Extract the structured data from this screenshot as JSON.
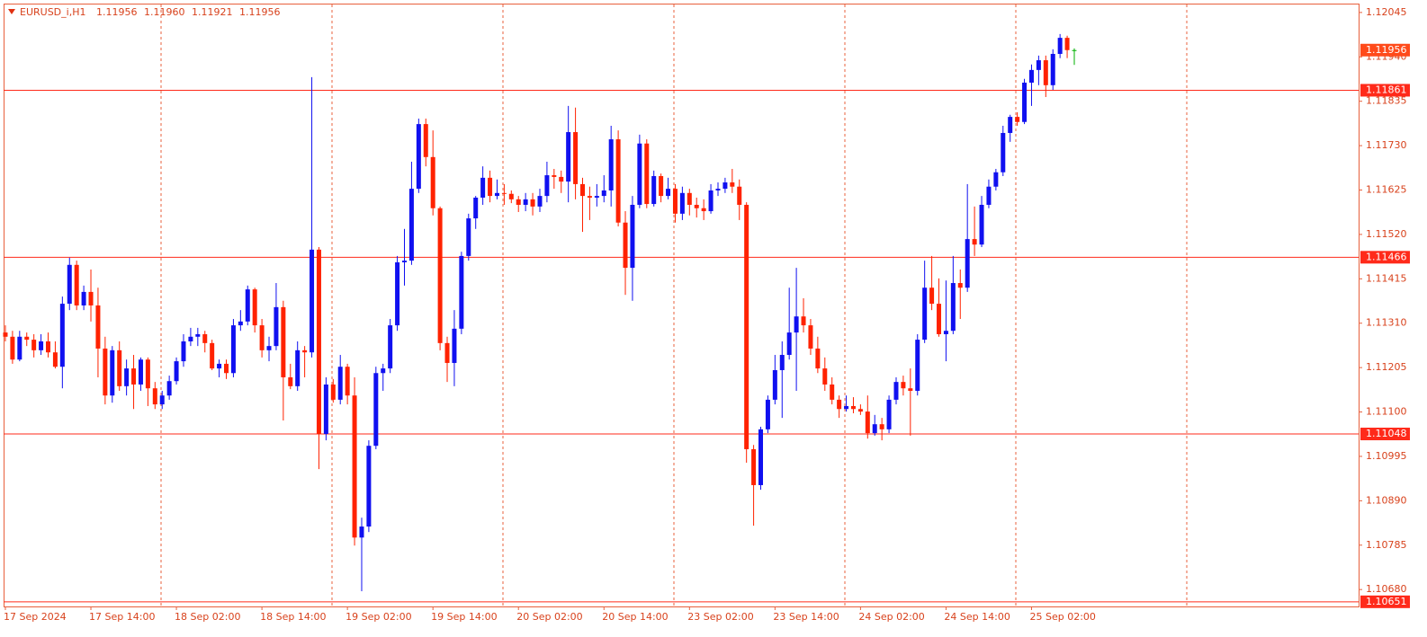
{
  "chart_data": {
    "type": "candlestick",
    "title": "EURUSD_i,H1",
    "header_labels": [
      "1.11956",
      "1.11960",
      "1.11921",
      "1.11956"
    ],
    "up_color": "#1010f0",
    "down_color": "#ff2200",
    "doji_color": "#00b000",
    "level_color": "#ff2a1a",
    "price_color": "#ff4a1a",
    "xlim": [
      -0.25,
      189.9
    ],
    "xticks": [
      {
        "value": 0,
        "label": "17 Sep 2024"
      },
      {
        "value": 12,
        "label": "17 Sep 14:00"
      },
      {
        "value": 24,
        "label": "18 Sep 02:00"
      },
      {
        "value": 36,
        "label": "18 Sep 14:00"
      },
      {
        "value": 48,
        "label": "19 Sep 02:00"
      },
      {
        "value": 60,
        "label": "19 Sep 14:00"
      },
      {
        "value": 72,
        "label": "20 Sep 02:00"
      },
      {
        "value": 84,
        "label": "20 Sep 14:00"
      },
      {
        "value": 96,
        "label": "23 Sep 02:00"
      },
      {
        "value": 108,
        "label": "23 Sep 14:00"
      },
      {
        "value": 120,
        "label": "24 Sep 02:00"
      },
      {
        "value": 132,
        "label": "24 Sep 14:00"
      },
      {
        "value": 144,
        "label": "25 Sep 02:00"
      }
    ],
    "ylim": [
      1.1064,
      1.12066
    ],
    "yticks": [
      1.12045,
      {
        "value": 1.1194,
        "label": "1.11940"
      },
      1.11835,
      {
        "value": 1.1173,
        "label": "1.11730"
      },
      1.11625,
      {
        "value": 1.1152,
        "label": "1.11520"
      },
      1.11415,
      {
        "value": 1.1131,
        "label": "1.11310"
      },
      1.11205,
      {
        "value": 1.111,
        "label": "1.11100"
      },
      1.10995,
      {
        "value": 1.1089,
        "label": "1.10890"
      },
      1.10785,
      {
        "value": 1.1068,
        "label": "1.10680"
      }
    ],
    "levels": [
      1.11861,
      1.11466,
      1.11048,
      1.10651
    ],
    "ohlc": [
      [
        1.11288,
        1.11305,
        1.11267,
        1.11278
      ],
      [
        1.11278,
        1.11292,
        1.11214,
        1.11224
      ],
      [
        1.11224,
        1.11292,
        1.1122,
        1.11278
      ],
      [
        1.11278,
        1.11288,
        1.11256,
        1.11271
      ],
      [
        1.11271,
        1.11284,
        1.11229,
        1.11246
      ],
      [
        1.11246,
        1.11284,
        1.11235,
        1.11267
      ],
      [
        1.11267,
        1.11288,
        1.11229,
        1.11241
      ],
      [
        1.11241,
        1.11267,
        1.11203,
        1.11207
      ],
      [
        1.11207,
        1.11373,
        1.11156,
        1.11356
      ],
      [
        1.11356,
        1.11465,
        1.11341,
        1.11448
      ],
      [
        1.11448,
        1.11458,
        1.11341,
        1.11352
      ],
      [
        1.11352,
        1.11399,
        1.11341,
        1.11384
      ],
      [
        1.11384,
        1.11437,
        1.11314,
        1.11352
      ],
      [
        1.11352,
        1.11394,
        1.11182,
        1.1125
      ],
      [
        1.1125,
        1.11278,
        1.11118,
        1.11139
      ],
      [
        1.11139,
        1.11256,
        1.11122,
        1.11246
      ],
      [
        1.11246,
        1.11267,
        1.1115,
        1.11161
      ],
      [
        1.11161,
        1.11224,
        1.11139,
        1.11203
      ],
      [
        1.11203,
        1.11235,
        1.11107,
        1.11165
      ],
      [
        1.11165,
        1.11229,
        1.1115,
        1.11224
      ],
      [
        1.11224,
        1.11229,
        1.11114,
        1.11156
      ],
      [
        1.11156,
        1.11171,
        1.11107,
        1.11118
      ],
      [
        1.11118,
        1.1115,
        1.11107,
        1.11139
      ],
      [
        1.11139,
        1.11186,
        1.11129,
        1.11173
      ],
      [
        1.11173,
        1.11229,
        1.11165,
        1.1122
      ],
      [
        1.1122,
        1.11284,
        1.11207,
        1.11267
      ],
      [
        1.11267,
        1.11299,
        1.11256,
        1.11278
      ],
      [
        1.11278,
        1.11299,
        1.11256,
        1.11284
      ],
      [
        1.11284,
        1.11292,
        1.11241,
        1.11263
      ],
      [
        1.11263,
        1.11271,
        1.11199,
        1.11203
      ],
      [
        1.11203,
        1.11224,
        1.11182,
        1.11214
      ],
      [
        1.11214,
        1.11224,
        1.11178,
        1.11192
      ],
      [
        1.11192,
        1.1132,
        1.11182,
        1.11305
      ],
      [
        1.11305,
        1.11341,
        1.11292,
        1.11314
      ],
      [
        1.11314,
        1.11399,
        1.11305,
        1.1139
      ],
      [
        1.1139,
        1.11394,
        1.11288,
        1.11305
      ],
      [
        1.11305,
        1.1132,
        1.11229,
        1.11246
      ],
      [
        1.11246,
        1.11278,
        1.1122,
        1.11256
      ],
      [
        1.11256,
        1.11405,
        1.11246,
        1.11348
      ],
      [
        1.11348,
        1.11363,
        1.1108,
        1.11182
      ],
      [
        1.11182,
        1.11214,
        1.11154,
        1.11161
      ],
      [
        1.11161,
        1.11267,
        1.1115,
        1.11246
      ],
      [
        1.11246,
        1.11256,
        1.11182,
        1.11241
      ],
      [
        1.11241,
        1.11892,
        1.11229,
        1.11484
      ],
      [
        1.11484,
        1.1149,
        1.10965,
        1.11048
      ],
      [
        1.11048,
        1.11182,
        1.11033,
        1.11165
      ],
      [
        1.11165,
        1.11178,
        1.11122,
        1.11129
      ],
      [
        1.11129,
        1.11235,
        1.11118,
        1.11207
      ],
      [
        1.11207,
        1.11214,
        1.11118,
        1.11139
      ],
      [
        1.11139,
        1.11182,
        1.10784,
        1.10803
      ],
      [
        1.10803,
        1.1085,
        1.10676,
        1.10829
      ],
      [
        1.10829,
        1.11033,
        1.10816,
        1.1102
      ],
      [
        1.1102,
        1.11207,
        1.11012,
        1.11192
      ],
      [
        1.11192,
        1.11214,
        1.1115,
        1.11203
      ],
      [
        1.11203,
        1.1132,
        1.11192,
        1.11305
      ],
      [
        1.11305,
        1.11469,
        1.11292,
        1.11454
      ],
      [
        1.11454,
        1.11533,
        1.11399,
        1.11458
      ],
      [
        1.11458,
        1.11692,
        1.11448,
        1.11628
      ],
      [
        1.11628,
        1.11794,
        1.11618,
        1.11781
      ],
      [
        1.11781,
        1.11794,
        1.11681,
        1.11703
      ],
      [
        1.11703,
        1.11766,
        1.11565,
        1.11582
      ],
      [
        1.11582,
        1.11586,
        1.11246,
        1.11263
      ],
      [
        1.11263,
        1.11278,
        1.11171,
        1.11216
      ],
      [
        1.11216,
        1.11341,
        1.11161,
        1.11297
      ],
      [
        1.11297,
        1.11479,
        1.11284,
        1.11469
      ],
      [
        1.11469,
        1.11569,
        1.11458,
        1.11558
      ],
      [
        1.11558,
        1.11611,
        1.11533,
        1.11607
      ],
      [
        1.11607,
        1.11681,
        1.1159,
        1.11654
      ],
      [
        1.11654,
        1.11671,
        1.11596,
        1.11611
      ],
      [
        1.11611,
        1.1165,
        1.11603,
        1.11618
      ],
      [
        1.11618,
        1.11639,
        1.1159,
        1.11616
      ],
      [
        1.11616,
        1.11624,
        1.11594,
        1.11603
      ],
      [
        1.11603,
        1.11611,
        1.11573,
        1.1159
      ],
      [
        1.1159,
        1.11618,
        1.11575,
        1.11603
      ],
      [
        1.11603,
        1.11618,
        1.11565,
        1.11586
      ],
      [
        1.11586,
        1.11628,
        1.11573,
        1.11611
      ],
      [
        1.11611,
        1.11692,
        1.11596,
        1.1166
      ],
      [
        1.1166,
        1.11675,
        1.11628,
        1.11656
      ],
      [
        1.11656,
        1.11671,
        1.11618,
        1.11645
      ],
      [
        1.11645,
        1.11824,
        1.11596,
        1.11762
      ],
      [
        1.11762,
        1.1182,
        1.11603,
        1.11639
      ],
      [
        1.11639,
        1.11654,
        1.11526,
        1.11611
      ],
      [
        1.11611,
        1.11633,
        1.11554,
        1.11607
      ],
      [
        1.11607,
        1.11639,
        1.11586,
        1.11611
      ],
      [
        1.11611,
        1.1166,
        1.11596,
        1.11624
      ],
      [
        1.11624,
        1.11777,
        1.11586,
        1.11745
      ],
      [
        1.11745,
        1.11766,
        1.11539,
        1.11548
      ],
      [
        1.11548,
        1.11575,
        1.11377,
        1.11441
      ],
      [
        1.11441,
        1.11611,
        1.11363,
        1.1159
      ],
      [
        1.1159,
        1.11756,
        1.11582,
        1.11735
      ],
      [
        1.11735,
        1.11745,
        1.11582,
        1.11592
      ],
      [
        1.11592,
        1.11671,
        1.11586,
        1.11658
      ],
      [
        1.11658,
        1.11664,
        1.11596,
        1.11611
      ],
      [
        1.11611,
        1.11654,
        1.11603,
        1.11628
      ],
      [
        1.11628,
        1.11639,
        1.11548,
        1.11569
      ],
      [
        1.11569,
        1.11633,
        1.11554,
        1.11618
      ],
      [
        1.11618,
        1.11628,
        1.11565,
        1.1159
      ],
      [
        1.1159,
        1.11607,
        1.1156,
        1.11582
      ],
      [
        1.11582,
        1.11603,
        1.11554,
        1.11575
      ],
      [
        1.11575,
        1.11639,
        1.11569,
        1.11624
      ],
      [
        1.11624,
        1.11643,
        1.11611,
        1.11628
      ],
      [
        1.11628,
        1.11654,
        1.11618,
        1.11643
      ],
      [
        1.11643,
        1.11675,
        1.11618,
        1.11633
      ],
      [
        1.11633,
        1.1165,
        1.11554,
        1.1159
      ],
      [
        1.1159,
        1.11596,
        1.1098,
        1.11012
      ],
      [
        1.11012,
        1.11022,
        1.10831,
        1.10927
      ],
      [
        1.10927,
        1.11065,
        1.10916,
        1.11059
      ],
      [
        1.11059,
        1.11139,
        1.1105,
        1.11129
      ],
      [
        1.11129,
        1.11235,
        1.11118,
        1.11199
      ],
      [
        1.11199,
        1.11267,
        1.11086,
        1.11235
      ],
      [
        1.11235,
        1.11394,
        1.11224,
        1.11288
      ],
      [
        1.11288,
        1.11441,
        1.1115,
        1.11326
      ],
      [
        1.11326,
        1.11369,
        1.11288,
        1.11305
      ],
      [
        1.11305,
        1.1132,
        1.11235,
        1.1125
      ],
      [
        1.1125,
        1.11278,
        1.11192,
        1.11203
      ],
      [
        1.11203,
        1.11229,
        1.1115,
        1.11165
      ],
      [
        1.11165,
        1.11182,
        1.11118,
        1.11129
      ],
      [
        1.11129,
        1.11139,
        1.11086,
        1.11107
      ],
      [
        1.11107,
        1.11139,
        1.11101,
        1.11114
      ],
      [
        1.11114,
        1.11135,
        1.11097,
        1.11107
      ],
      [
        1.11107,
        1.11118,
        1.11093,
        1.11101
      ],
      [
        1.11101,
        1.11139,
        1.11037,
        1.1105
      ],
      [
        1.1105,
        1.11093,
        1.11044,
        1.11071
      ],
      [
        1.11071,
        1.11086,
        1.11033,
        1.11059
      ],
      [
        1.11059,
        1.11139,
        1.1105,
        1.11129
      ],
      [
        1.11129,
        1.11182,
        1.11118,
        1.11171
      ],
      [
        1.11171,
        1.11186,
        1.11139,
        1.11156
      ],
      [
        1.11156,
        1.11203,
        1.11044,
        1.1115
      ],
      [
        1.1115,
        1.11284,
        1.11139,
        1.11271
      ],
      [
        1.11271,
        1.11458,
        1.11263,
        1.11394
      ],
      [
        1.11394,
        1.11469,
        1.11341,
        1.11356
      ],
      [
        1.11356,
        1.11416,
        1.11278,
        1.11284
      ],
      [
        1.11284,
        1.11411,
        1.1122,
        1.11292
      ],
      [
        1.11292,
        1.11469,
        1.11284,
        1.11405
      ],
      [
        1.11405,
        1.11437,
        1.1132,
        1.11394
      ],
      [
        1.11394,
        1.11639,
        1.11384,
        1.11509
      ],
      [
        1.11509,
        1.11586,
        1.11469,
        1.11496
      ],
      [
        1.11496,
        1.11611,
        1.1149,
        1.1159
      ],
      [
        1.1159,
        1.1165,
        1.11582,
        1.11633
      ],
      [
        1.11633,
        1.11675,
        1.11624,
        1.11667
      ],
      [
        1.11667,
        1.11777,
        1.11658,
        1.1176
      ],
      [
        1.1176,
        1.11803,
        1.11739,
        1.11798
      ],
      [
        1.11798,
        1.11809,
        1.11777,
        1.11786
      ],
      [
        1.11786,
        1.11888,
        1.11781,
        1.11879
      ],
      [
        1.11879,
        1.11922,
        1.11824,
        1.11909
      ],
      [
        1.11909,
        1.11943,
        1.11873,
        1.11932
      ],
      [
        1.11932,
        1.11943,
        1.11845,
        1.11873
      ],
      [
        1.11873,
        1.11958,
        1.11862,
        1.11947
      ],
      [
        1.11947,
        1.11994,
        1.11937,
        1.11985
      ],
      [
        1.11985,
        1.1199,
        1.11937,
        1.11956
      ],
      [
        1.11956,
        1.1196,
        1.11921,
        1.11956
      ]
    ]
  }
}
